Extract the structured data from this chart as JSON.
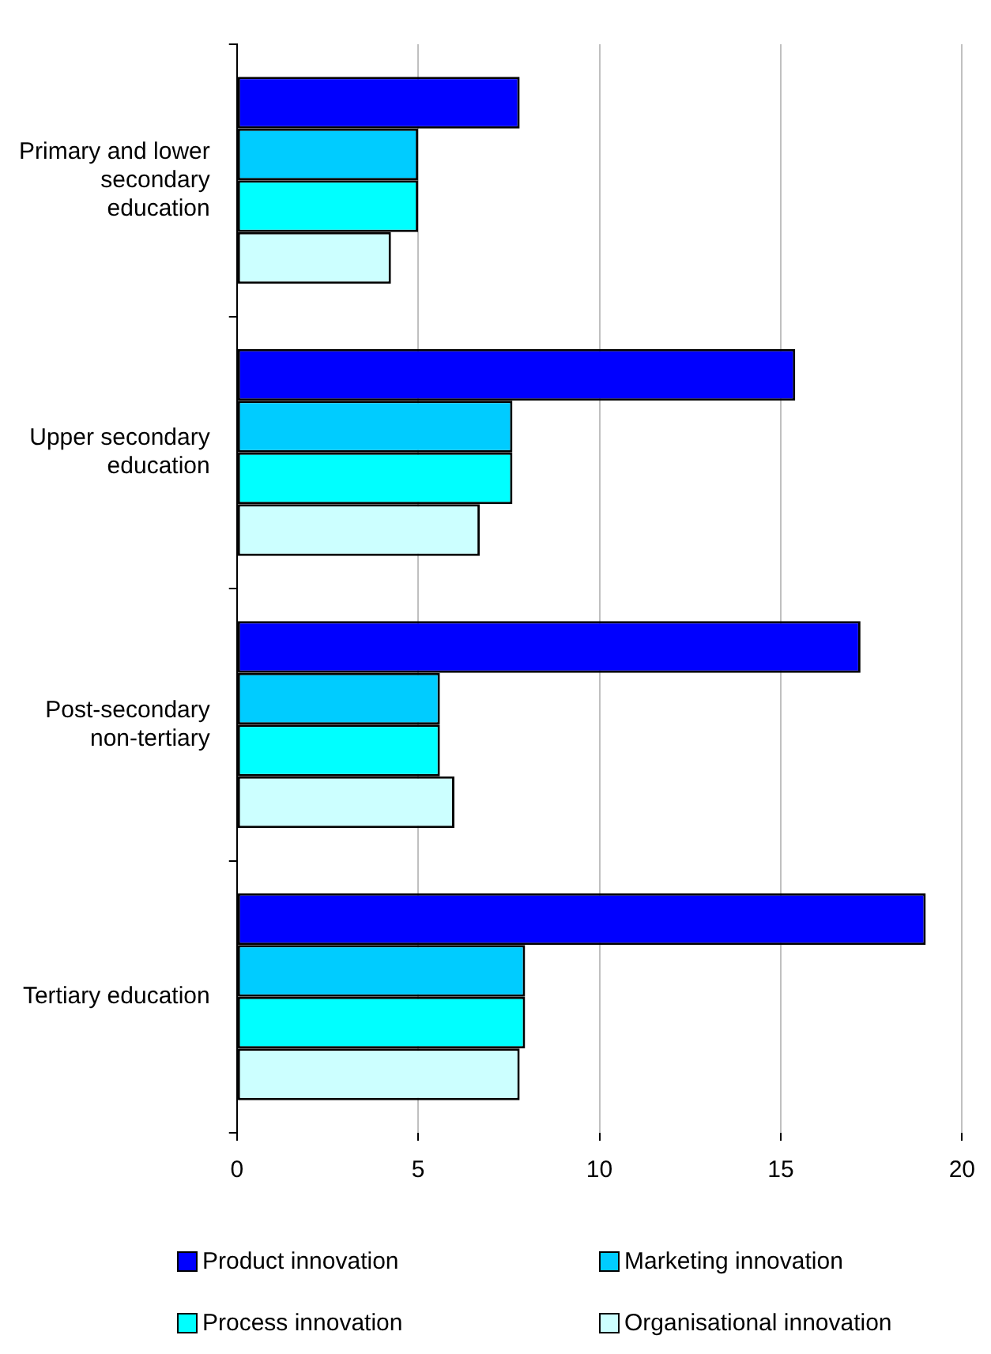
{
  "chart_data": {
    "type": "bar",
    "orientation": "horizontal",
    "categories": [
      "Primary and lower secondary education",
      "Upper secondary education",
      "Post-secondary non-tertiary",
      "Tertiary education"
    ],
    "series": [
      {
        "name": "Product innovation",
        "color": "#0000ff",
        "values": [
          7.8,
          15.4,
          17.2,
          19.0
        ]
      },
      {
        "name": "Marketing innovation",
        "color": "#00ccff",
        "values": [
          5.0,
          7.6,
          5.6,
          7.95
        ]
      },
      {
        "name": "Process innovation",
        "color": "#00ffff",
        "values": [
          5.0,
          7.6,
          5.6,
          7.95
        ]
      },
      {
        "name": "Organisational innovation",
        "color": "#ccffff",
        "values": [
          4.25,
          6.7,
          6.0,
          7.8
        ]
      }
    ],
    "xlim": [
      0,
      20
    ],
    "xticks": [
      0,
      5,
      10,
      15,
      20
    ],
    "grid": "x",
    "legend": "bottom"
  }
}
